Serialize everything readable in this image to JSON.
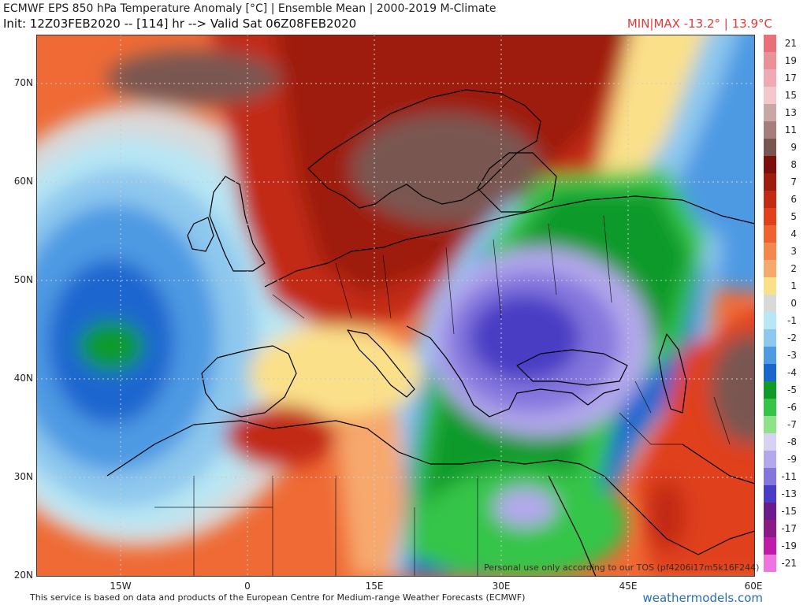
{
  "header": {
    "title": "ECMWF EPS 850 hPa Temperature Anomaly [°C] | Ensemble Mean | 2000-2019 M-Climate",
    "subtitle": "Init: 12Z03FEB2020 -- [114] hr --> Valid Sat 06Z08FEB2020",
    "minmax": "MIN|MAX -13.2° | 13.9°C"
  },
  "map": {
    "lat_labels": [
      "70N",
      "60N",
      "50N",
      "40N",
      "30N",
      "20N"
    ],
    "lon_labels": [
      "15W",
      "0",
      "15E",
      "30E",
      "45E",
      "60E"
    ],
    "extent": {
      "lon_min": -25,
      "lon_max": 60,
      "lat_min": 20,
      "lat_max": 75
    },
    "colors": {
      "land_border": "#000000",
      "grid": "#bbbbbb"
    }
  },
  "legend": {
    "entries": [
      {
        "label": "21",
        "color": "#e8707a"
      },
      {
        "label": "19",
        "color": "#eb8f98"
      },
      {
        "label": "17",
        "color": "#f0aab3"
      },
      {
        "label": "15",
        "color": "#f5c7cc"
      },
      {
        "label": "13",
        "color": "#c9a7a4"
      },
      {
        "label": "11",
        "color": "#a67f7a"
      },
      {
        "label": "9",
        "color": "#7a5651"
      },
      {
        "label": "8",
        "color": "#7a0f0b"
      },
      {
        "label": "7",
        "color": "#9e1c0e"
      },
      {
        "label": "6",
        "color": "#c22b12"
      },
      {
        "label": "5",
        "color": "#e0401a"
      },
      {
        "label": "4",
        "color": "#ef6330"
      },
      {
        "label": "3",
        "color": "#f4874d"
      },
      {
        "label": "2",
        "color": "#f7a86d"
      },
      {
        "label": "1",
        "color": "#fbe08a"
      },
      {
        "label": "0",
        "color": "#d9d9d9"
      },
      {
        "label": "-1",
        "color": "#b8e6f4"
      },
      {
        "label": "-2",
        "color": "#8ec8ee"
      },
      {
        "label": "-3",
        "color": "#4e9ae3"
      },
      {
        "label": "-4",
        "color": "#1a66cf"
      },
      {
        "label": "-5",
        "color": "#0f9a2a"
      },
      {
        "label": "-6",
        "color": "#34c548"
      },
      {
        "label": "-7",
        "color": "#8fe28a"
      },
      {
        "label": "-8",
        "color": "#d8d2f2"
      },
      {
        "label": "-9",
        "color": "#b3a8ec"
      },
      {
        "label": "-11",
        "color": "#8476dd"
      },
      {
        "label": "-13",
        "color": "#4a3cc4"
      },
      {
        "label": "-15",
        "color": "#6a1a8a"
      },
      {
        "label": "-17",
        "color": "#8b1a86"
      },
      {
        "label": "-19",
        "color": "#c01aa8"
      },
      {
        "label": "-21",
        "color": "#ee74e0"
      }
    ]
  },
  "footer": {
    "credit": "This service is based on data and products of the European Centre for Medium-range Weather Forecasts (ECMWF)",
    "tos": "Personal use only according to our TOS (pf4206i17m5k16F244)",
    "brand": "weathermodels.com"
  }
}
